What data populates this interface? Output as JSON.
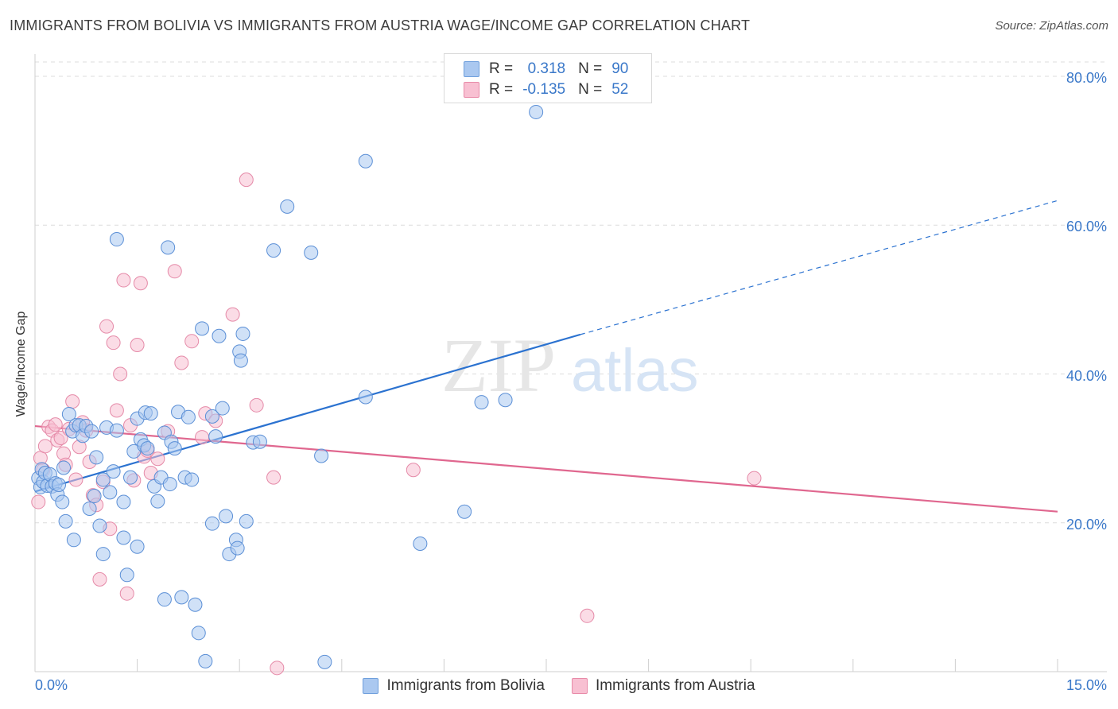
{
  "title": "IMMIGRANTS FROM BOLIVIA VS IMMIGRANTS FROM AUSTRIA WAGE/INCOME GAP CORRELATION CHART",
  "source": "Source: ZipAtlas.com",
  "watermark": {
    "zip": "ZIP",
    "atlas": "atlas"
  },
  "legend": {
    "r_label": "R =",
    "n_label": "N =",
    "rows": [
      {
        "r": "0.318",
        "n": "90",
        "color": "#aac8f0",
        "border": "#6f9fdc"
      },
      {
        "r": "-0.135",
        "n": "52",
        "color": "#f8c0d2",
        "border": "#e88aa8"
      }
    ]
  },
  "colors": {
    "bolivia_fill": "#aac8f0",
    "bolivia_stroke": "#5b8fd6",
    "bolivia_line": "#2b72d0",
    "austria_fill": "#f8c0d2",
    "austria_stroke": "#e58aa8",
    "austria_line": "#e0678f",
    "tick_text": "#3a78c9",
    "grid": "#dcdcdc"
  },
  "chart_data": {
    "type": "scatter",
    "title": "IMMIGRANTS FROM BOLIVIA VS IMMIGRANTS FROM AUSTRIA WAGE/INCOME GAP CORRELATION CHART",
    "xlabel": "",
    "ylabel": "Wage/Income Gap",
    "xlim": [
      0,
      15
    ],
    "ylim": [
      0,
      80
    ],
    "x_tick_labels": [
      "0.0%",
      "15.0%"
    ],
    "y_ticks": [
      20,
      40,
      60,
      80
    ],
    "y_tick_labels": [
      "20.0%",
      "40.0%",
      "60.0%",
      "80.0%"
    ],
    "series": [
      {
        "name": "Immigrants from Bolivia",
        "r": 0.318,
        "n": 90,
        "trend": {
          "x0": 0.0,
          "y0": 24.2,
          "x1": 8.0,
          "y1": 45.3,
          "dashed_to_x": 15.0,
          "dashed_to_y": 63.3
        },
        "points": [
          [
            0.05,
            26.0
          ],
          [
            0.08,
            24.8
          ],
          [
            0.1,
            27.2
          ],
          [
            0.12,
            25.5
          ],
          [
            0.15,
            26.7
          ],
          [
            0.18,
            25.0
          ],
          [
            0.22,
            26.5
          ],
          [
            0.25,
            24.9
          ],
          [
            0.3,
            25.3
          ],
          [
            0.33,
            23.8
          ],
          [
            0.35,
            25.1
          ],
          [
            0.4,
            22.8
          ],
          [
            0.42,
            27.4
          ],
          [
            0.45,
            20.2
          ],
          [
            0.5,
            34.6
          ],
          [
            0.55,
            32.3
          ],
          [
            0.57,
            17.7
          ],
          [
            0.6,
            33.1
          ],
          [
            0.65,
            33.1
          ],
          [
            0.7,
            31.7
          ],
          [
            0.75,
            33.0
          ],
          [
            0.8,
            21.9
          ],
          [
            0.83,
            32.3
          ],
          [
            0.87,
            23.6
          ],
          [
            0.9,
            28.8
          ],
          [
            0.95,
            19.6
          ],
          [
            1.0,
            25.8
          ],
          [
            1.0,
            15.8
          ],
          [
            1.05,
            32.8
          ],
          [
            1.1,
            24.1
          ],
          [
            1.15,
            26.9
          ],
          [
            1.2,
            32.4
          ],
          [
            1.2,
            58.1
          ],
          [
            1.3,
            22.8
          ],
          [
            1.3,
            18.0
          ],
          [
            1.35,
            13.0
          ],
          [
            1.4,
            26.1
          ],
          [
            1.45,
            29.6
          ],
          [
            1.5,
            34.0
          ],
          [
            1.5,
            16.8
          ],
          [
            1.55,
            31.2
          ],
          [
            1.6,
            30.4
          ],
          [
            1.62,
            34.8
          ],
          [
            1.65,
            30.0
          ],
          [
            1.7,
            34.7
          ],
          [
            1.75,
            24.9
          ],
          [
            1.8,
            22.9
          ],
          [
            1.85,
            26.1
          ],
          [
            1.9,
            32.1
          ],
          [
            1.9,
            9.7
          ],
          [
            1.95,
            57.0
          ],
          [
            1.98,
            25.2
          ],
          [
            2.0,
            30.9
          ],
          [
            2.05,
            30.0
          ],
          [
            2.1,
            34.9
          ],
          [
            2.15,
            10.0
          ],
          [
            2.2,
            26.1
          ],
          [
            2.25,
            34.2
          ],
          [
            2.3,
            25.8
          ],
          [
            2.35,
            9.0
          ],
          [
            2.4,
            5.2
          ],
          [
            2.45,
            46.1
          ],
          [
            2.5,
            1.4
          ],
          [
            2.6,
            34.3
          ],
          [
            2.6,
            19.9
          ],
          [
            2.65,
            31.6
          ],
          [
            2.7,
            45.1
          ],
          [
            2.75,
            35.4
          ],
          [
            2.8,
            20.9
          ],
          [
            2.85,
            15.8
          ],
          [
            2.95,
            17.7
          ],
          [
            2.97,
            16.6
          ],
          [
            3.0,
            43.0
          ],
          [
            3.02,
            41.8
          ],
          [
            3.05,
            45.4
          ],
          [
            3.1,
            20.2
          ],
          [
            3.2,
            30.8
          ],
          [
            3.5,
            56.6
          ],
          [
            3.7,
            62.5
          ],
          [
            4.05,
            56.3
          ],
          [
            4.2,
            29.0
          ],
          [
            4.25,
            1.3
          ],
          [
            4.85,
            36.9
          ],
          [
            4.85,
            68.6
          ],
          [
            5.65,
            17.2
          ],
          [
            6.3,
            21.5
          ],
          [
            6.55,
            36.2
          ],
          [
            6.9,
            36.5
          ],
          [
            7.35,
            75.2
          ],
          [
            3.3,
            30.9
          ]
        ]
      },
      {
        "name": "Immigrants from Austria",
        "r": -0.135,
        "n": 52,
        "trend": {
          "x0": 0.0,
          "y0": 33.0,
          "x1": 15.0,
          "y1": 21.5
        },
        "points": [
          [
            0.05,
            22.8
          ],
          [
            0.08,
            28.7
          ],
          [
            0.12,
            27.1
          ],
          [
            0.15,
            30.3
          ],
          [
            0.2,
            32.9
          ],
          [
            0.25,
            32.4
          ],
          [
            0.3,
            33.2
          ],
          [
            0.33,
            31.1
          ],
          [
            0.38,
            31.4
          ],
          [
            0.42,
            29.3
          ],
          [
            0.45,
            27.8
          ],
          [
            0.5,
            32.6
          ],
          [
            0.55,
            36.3
          ],
          [
            0.6,
            25.8
          ],
          [
            0.65,
            30.2
          ],
          [
            0.7,
            33.5
          ],
          [
            0.75,
            32.4
          ],
          [
            0.8,
            28.2
          ],
          [
            0.85,
            23.7
          ],
          [
            0.9,
            22.4
          ],
          [
            0.95,
            12.4
          ],
          [
            1.0,
            25.5
          ],
          [
            1.05,
            46.4
          ],
          [
            1.1,
            19.2
          ],
          [
            1.15,
            44.2
          ],
          [
            1.2,
            35.1
          ],
          [
            1.25,
            40.0
          ],
          [
            1.3,
            52.6
          ],
          [
            1.35,
            10.5
          ],
          [
            1.4,
            33.1
          ],
          [
            1.45,
            25.7
          ],
          [
            1.5,
            43.9
          ],
          [
            1.55,
            52.2
          ],
          [
            1.6,
            28.9
          ],
          [
            1.65,
            29.7
          ],
          [
            1.7,
            26.7
          ],
          [
            1.8,
            28.6
          ],
          [
            1.95,
            32.3
          ],
          [
            2.05,
            53.8
          ],
          [
            2.15,
            41.5
          ],
          [
            2.3,
            44.4
          ],
          [
            2.45,
            31.5
          ],
          [
            2.5,
            34.7
          ],
          [
            2.65,
            33.7
          ],
          [
            2.9,
            48.0
          ],
          [
            3.1,
            66.1
          ],
          [
            3.25,
            35.8
          ],
          [
            3.5,
            26.1
          ],
          [
            3.55,
            0.5
          ],
          [
            5.55,
            27.1
          ],
          [
            8.1,
            7.5
          ],
          [
            10.55,
            26.0
          ]
        ]
      }
    ]
  },
  "bottom_legend": [
    "Immigrants from Bolivia",
    "Immigrants from Austria"
  ]
}
